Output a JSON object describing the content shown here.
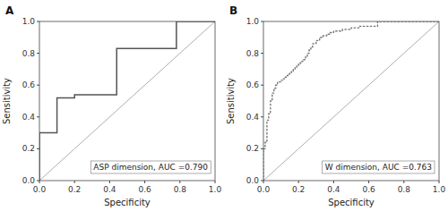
{
  "chart_data": [
    {
      "type": "step",
      "title": "A",
      "annotation": "ASP dimension, AUC =0.790",
      "x_label": "Specificity",
      "y_label": "Sensitivity",
      "x": [
        0.0,
        0.0,
        0.0,
        0.02,
        0.04,
        0.06,
        0.08,
        0.1,
        0.1,
        0.12,
        0.14,
        0.16,
        0.18,
        0.2,
        0.44,
        0.44,
        0.46,
        0.6,
        0.76,
        0.78,
        1.0
      ],
      "series": [
        {
          "color": "#555555",
          "line_style": "solid",
          "values": [
            0.0,
            0.14,
            0.3,
            0.3,
            0.3,
            0.3,
            0.3,
            0.3,
            0.52,
            0.52,
            0.52,
            0.52,
            0.52,
            0.54,
            0.54,
            0.83,
            0.83,
            0.83,
            0.83,
            1.0,
            1.0
          ]
        }
      ],
      "reference_line": {
        "x": [
          0,
          1
        ],
        "values": [
          0,
          1
        ],
        "color": "#999999"
      },
      "xlim": [
        0,
        1
      ],
      "ylim": [
        0,
        1
      ],
      "xticks": [
        {
          "value": 0,
          "label": "0.0"
        },
        0.2,
        0.4,
        0.6,
        0.8,
        {
          "value": 1,
          "label": "1.0"
        }
      ],
      "yticks": [
        {
          "value": 0,
          "label": "0.0"
        },
        0.2,
        0.4,
        0.6,
        0.8,
        {
          "value": 1,
          "label": "1.0"
        }
      ],
      "grid": false
    },
    {
      "type": "step",
      "title": "B",
      "annotation": "W dimension, AUC =0.763",
      "x_label": "Specificity",
      "y_label": "Sensitivity",
      "x": [
        0.0,
        0.0,
        0.0,
        0.0,
        0.0,
        0.0,
        0.0,
        0.01,
        0.01,
        0.01,
        0.02,
        0.02,
        0.02,
        0.02,
        0.03,
        0.03,
        0.04,
        0.04,
        0.04,
        0.05,
        0.05,
        0.05,
        0.06,
        0.06,
        0.07,
        0.07,
        0.08,
        0.08,
        0.09,
        0.1,
        0.11,
        0.12,
        0.13,
        0.14,
        0.15,
        0.16,
        0.17,
        0.18,
        0.19,
        0.2,
        0.21,
        0.22,
        0.23,
        0.24,
        0.25,
        0.26,
        0.27,
        0.28,
        0.3,
        0.32,
        0.34,
        0.36,
        0.38,
        0.4,
        0.45,
        0.5,
        0.55,
        0.6,
        0.65,
        0.7,
        1.0
      ],
      "series": [
        {
          "color": "#777777",
          "line_style": "dotted",
          "values": [
            0.0,
            0.02,
            0.04,
            0.08,
            0.12,
            0.16,
            0.2,
            0.2,
            0.22,
            0.24,
            0.24,
            0.26,
            0.3,
            0.38,
            0.38,
            0.42,
            0.42,
            0.46,
            0.5,
            0.5,
            0.52,
            0.55,
            0.55,
            0.58,
            0.58,
            0.6,
            0.6,
            0.62,
            0.62,
            0.63,
            0.64,
            0.65,
            0.66,
            0.67,
            0.68,
            0.69,
            0.7,
            0.71,
            0.72,
            0.73,
            0.74,
            0.75,
            0.76,
            0.78,
            0.8,
            0.82,
            0.84,
            0.86,
            0.88,
            0.9,
            0.91,
            0.92,
            0.93,
            0.94,
            0.95,
            0.96,
            0.97,
            0.97,
            1.0,
            1.0,
            1.0
          ]
        }
      ],
      "reference_line": {
        "x": [
          0,
          1
        ],
        "values": [
          0,
          1
        ],
        "color": "#999999"
      },
      "xlim": [
        0,
        1
      ],
      "ylim": [
        0,
        1
      ],
      "xticks": [
        {
          "value": 0,
          "label": "0.0"
        },
        0.2,
        0.4,
        0.6,
        0.8,
        {
          "value": 1,
          "label": "1.0"
        }
      ],
      "yticks": [
        {
          "value": 0,
          "label": "0.0"
        },
        0.2,
        0.4,
        0.6,
        0.8,
        {
          "value": 1,
          "label": "1.0"
        }
      ],
      "grid": false
    }
  ]
}
